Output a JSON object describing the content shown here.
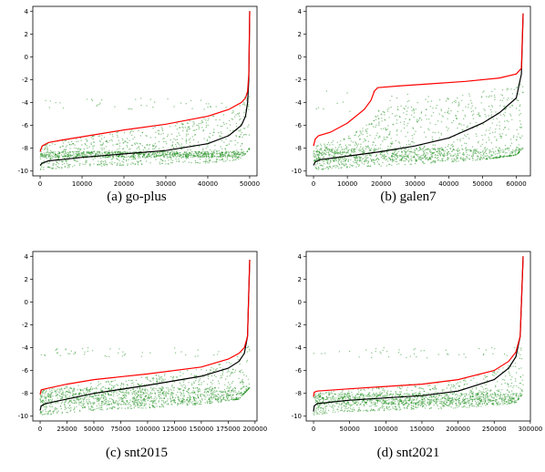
{
  "chart_data": [
    {
      "type": "scatter",
      "caption": "(a)  go-plus",
      "xlim": [
        0,
        50000
      ],
      "ylim": [
        -10,
        4
      ],
      "xticks": [
        0,
        10000,
        20000,
        30000,
        40000,
        50000
      ],
      "xtick_labels": [
        "0",
        "10000",
        "20000",
        "30000",
        "40000",
        "50000"
      ],
      "yticks": [
        -10,
        -8,
        -6,
        -4,
        -2,
        0,
        2,
        4
      ],
      "ytick_labels": [
        "-10",
        "-8",
        "-6",
        "-4",
        "-2",
        "0",
        "2",
        "4"
      ],
      "grid": false,
      "series": [
        {
          "kind": "points",
          "color": "#008000",
          "n": 50000,
          "band_x": [
            0,
            10000,
            20000,
            30000,
            40000,
            48000,
            50000
          ],
          "band_lo": [
            -9.9,
            -9.6,
            -9.5,
            -9.4,
            -9.3,
            -9.0,
            -8.0
          ],
          "band_hi": [
            -7.6,
            -7.0,
            -6.5,
            -6.0,
            -5.3,
            -4.5,
            -2.0
          ],
          "dense_y": [
            -8.8,
            -8.3
          ],
          "outlier_y": [
            -4.6,
            -3.6
          ]
        },
        {
          "kind": "line",
          "color": "#000000",
          "x": [
            0,
            500,
            2000,
            5000,
            10000,
            20000,
            30000,
            40000,
            45000,
            48000,
            49000,
            49500,
            49800,
            50000
          ],
          "y": [
            -9.5,
            -9.3,
            -9.1,
            -9.0,
            -8.8,
            -8.5,
            -8.2,
            -7.6,
            -6.9,
            -6.0,
            -5.2,
            -4.0,
            -2.0,
            4.0
          ]
        },
        {
          "kind": "line",
          "color": "#ff0000",
          "x": [
            0,
            500,
            2000,
            5000,
            10000,
            20000,
            30000,
            40000,
            45000,
            48000,
            49000,
            49500,
            49800,
            50000
          ],
          "y": [
            -8.3,
            -7.8,
            -7.5,
            -7.3,
            -7.0,
            -6.4,
            -5.9,
            -5.2,
            -4.6,
            -4.0,
            -3.6,
            -3.0,
            -1.5,
            4.0
          ]
        }
      ]
    },
    {
      "type": "scatter",
      "caption": "(b)  galen7",
      "xlim": [
        0,
        62000
      ],
      "ylim": [
        -10,
        4
      ],
      "xticks": [
        0,
        10000,
        20000,
        30000,
        40000,
        50000,
        60000
      ],
      "xtick_labels": [
        "0",
        "10000",
        "20000",
        "30000",
        "40000",
        "50000",
        "60000"
      ],
      "yticks": [
        -10,
        -8,
        -6,
        -4,
        -2,
        0,
        2,
        4
      ],
      "ytick_labels": [
        "-10",
        "-8",
        "-6",
        "-4",
        "-2",
        "0",
        "2",
        "4"
      ],
      "grid": false,
      "series": [
        {
          "kind": "points",
          "color": "#008000",
          "n": 62000,
          "band_x": [
            0,
            10000,
            18000,
            19000,
            30000,
            40000,
            50000,
            60000,
            62000
          ],
          "band_lo": [
            -9.9,
            -9.7,
            -9.6,
            -9.6,
            -9.4,
            -9.2,
            -9.0,
            -8.6,
            -8.0
          ],
          "band_hi": [
            -7.8,
            -7.0,
            -5.5,
            -4.2,
            -4.0,
            -3.6,
            -3.0,
            -2.5,
            -1.5
          ],
          "dense_y": [
            -9.2,
            -8.0
          ],
          "outlier_y": [
            -5.0,
            -3.0
          ]
        },
        {
          "kind": "line",
          "color": "#000000",
          "x": [
            0,
            500,
            2000,
            10000,
            20000,
            30000,
            40000,
            50000,
            55000,
            60000,
            61500,
            62000
          ],
          "y": [
            -9.5,
            -9.2,
            -9.0,
            -8.7,
            -8.3,
            -7.8,
            -7.1,
            -5.8,
            -4.9,
            -3.6,
            -1.5,
            3.8
          ]
        },
        {
          "kind": "line",
          "color": "#ff0000",
          "x": [
            0,
            500,
            1500,
            5000,
            10000,
            15000,
            17000,
            18000,
            19000,
            25000,
            35000,
            45000,
            55000,
            60000,
            61500,
            62000
          ],
          "y": [
            -7.8,
            -7.2,
            -6.9,
            -6.6,
            -5.8,
            -4.6,
            -3.8,
            -3.0,
            -2.7,
            -2.55,
            -2.35,
            -2.15,
            -1.85,
            -1.5,
            -1.0,
            3.8
          ]
        }
      ]
    },
    {
      "type": "scatter",
      "caption": "(c)  snt2015",
      "xlim": [
        0,
        195000
      ],
      "ylim": [
        -10,
        4
      ],
      "xticks": [
        0,
        25000,
        50000,
        75000,
        100000,
        125000,
        150000,
        175000,
        200000
      ],
      "xtick_labels": [
        "0",
        "25000",
        "50000",
        "75000",
        "100000",
        "125000",
        "150000",
        "175000",
        "200000"
      ],
      "yticks": [
        -10,
        -8,
        -6,
        -4,
        -2,
        0,
        2,
        4
      ],
      "ytick_labels": [
        "-10",
        "-8",
        "-6",
        "-4",
        "-2",
        "0",
        "2",
        "4"
      ],
      "grid": false,
      "series": [
        {
          "kind": "points",
          "color": "#008000",
          "n": 195000,
          "band_x": [
            0,
            25000,
            50000,
            100000,
            150000,
            185000,
            195000
          ],
          "band_lo": [
            -9.9,
            -9.7,
            -9.5,
            -9.3,
            -9.0,
            -8.5,
            -7.5
          ],
          "band_hi": [
            -7.8,
            -7.3,
            -7.0,
            -6.5,
            -5.8,
            -5.0,
            -3.5
          ],
          "dense_y": [
            -9.0,
            -7.5
          ],
          "outlier_y": [
            -4.8,
            -4.0
          ]
        },
        {
          "kind": "line",
          "color": "#000000",
          "x": [
            0,
            1000,
            5000,
            25000,
            50000,
            100000,
            150000,
            175000,
            185000,
            190000,
            193000,
            195000
          ],
          "y": [
            -9.5,
            -9.1,
            -8.9,
            -8.5,
            -8.0,
            -7.3,
            -6.5,
            -5.8,
            -5.2,
            -4.5,
            -3.0,
            3.7
          ]
        },
        {
          "kind": "line",
          "color": "#ff0000",
          "x": [
            0,
            1000,
            5000,
            25000,
            50000,
            100000,
            150000,
            175000,
            185000,
            190000,
            193000,
            195000
          ],
          "y": [
            -8.1,
            -7.7,
            -7.6,
            -7.2,
            -6.8,
            -6.3,
            -5.7,
            -5.0,
            -4.5,
            -4.0,
            -3.0,
            3.7
          ]
        }
      ]
    },
    {
      "type": "scatter",
      "caption": "(d)  snt2021",
      "xlim": [
        0,
        290000
      ],
      "ylim": [
        -10,
        4
      ],
      "xticks": [
        0,
        50000,
        100000,
        150000,
        200000,
        250000,
        300000
      ],
      "xtick_labels": [
        "0",
        "50000",
        "100000",
        "150000",
        "200000",
        "250000",
        "300000"
      ],
      "yticks": [
        -10,
        -8,
        -6,
        -4,
        -2,
        0,
        2,
        4
      ],
      "ytick_labels": [
        "-10",
        "-8",
        "-6",
        "-4",
        "-2",
        "0",
        "2",
        "4"
      ],
      "grid": false,
      "series": [
        {
          "kind": "points",
          "color": "#008000",
          "n": 290000,
          "band_x": [
            0,
            50000,
            100000,
            200000,
            250000,
            280000,
            290000
          ],
          "band_lo": [
            -9.9,
            -9.6,
            -9.5,
            -9.3,
            -9.1,
            -8.8,
            -8.0
          ],
          "band_hi": [
            -8.0,
            -7.6,
            -7.4,
            -6.8,
            -6.0,
            -5.2,
            -3.5
          ],
          "dense_y": [
            -9.0,
            -8.0
          ],
          "outlier_y": [
            -4.9,
            -4.0
          ]
        },
        {
          "kind": "line",
          "color": "#000000",
          "x": [
            0,
            1000,
            5000,
            50000,
            100000,
            150000,
            200000,
            250000,
            270000,
            280000,
            286000,
            290000
          ],
          "y": [
            -9.6,
            -9.1,
            -8.9,
            -8.6,
            -8.4,
            -8.2,
            -7.8,
            -6.8,
            -5.8,
            -4.8,
            -3.0,
            4.0
          ]
        },
        {
          "kind": "line",
          "color": "#ff0000",
          "x": [
            0,
            1000,
            5000,
            50000,
            100000,
            150000,
            200000,
            250000,
            270000,
            280000,
            286000,
            290000
          ],
          "y": [
            -8.3,
            -7.9,
            -7.8,
            -7.6,
            -7.4,
            -7.2,
            -6.8,
            -6.0,
            -5.2,
            -4.4,
            -3.0,
            4.0
          ]
        }
      ]
    }
  ]
}
